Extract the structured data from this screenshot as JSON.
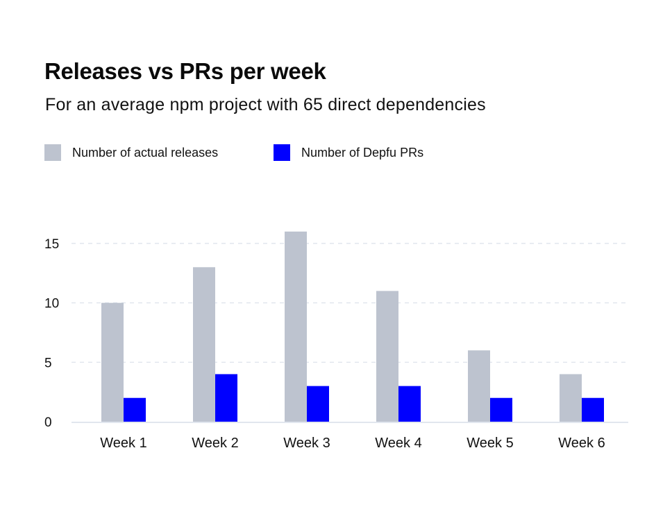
{
  "chart_data": {
    "type": "bar",
    "title": "Releases vs PRs per week",
    "subtitle": "For an average npm project with 65 direct dependencies",
    "categories": [
      "Week 1",
      "Week 2",
      "Week 3",
      "Week 4",
      "Week 5",
      "Week 6"
    ],
    "series": [
      {
        "name": "Number of actual releases",
        "color": "#bdc3cf",
        "values": [
          10,
          13,
          16,
          11,
          6,
          4
        ]
      },
      {
        "name": "Number of Depfu PRs",
        "color": "#0000ff",
        "values": [
          2,
          4,
          3,
          3,
          2,
          2
        ]
      }
    ],
    "xlabel": "",
    "ylabel": "",
    "yticks": [
      0,
      5,
      10,
      15
    ],
    "ylim": [
      0,
      16
    ],
    "grid": true,
    "grid_style": "dashed",
    "legend_position": "top-left",
    "grid_color": "#e1e6ee",
    "axis_color": "#e1e6ee"
  }
}
